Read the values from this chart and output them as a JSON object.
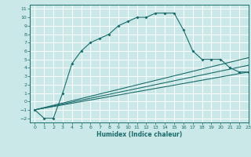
{
  "xlabel": "Humidex (Indice chaleur)",
  "bg_color": "#cbe8e8",
  "grid_color": "#ffffff",
  "line_color": "#1a6b6b",
  "xlim": [
    -0.5,
    23
  ],
  "ylim": [
    -2.5,
    11.5
  ],
  "xticks": [
    0,
    1,
    2,
    3,
    4,
    5,
    6,
    7,
    8,
    9,
    10,
    11,
    12,
    13,
    14,
    15,
    16,
    17,
    18,
    19,
    20,
    21,
    22,
    23
  ],
  "yticks": [
    -2,
    -1,
    0,
    1,
    2,
    3,
    4,
    5,
    6,
    7,
    8,
    9,
    10,
    11
  ],
  "line1_x": [
    0,
    1,
    2,
    3,
    4,
    5,
    6,
    7,
    8,
    9,
    10,
    11,
    12,
    13,
    14,
    15,
    16,
    17,
    18,
    19,
    20,
    21,
    22,
    23
  ],
  "line1_y": [
    -1,
    -2,
    -2,
    1,
    4.5,
    6,
    7,
    7.5,
    8,
    9,
    9.5,
    10,
    10,
    10.5,
    10.5,
    10.5,
    8.5,
    6,
    5,
    5,
    5,
    4,
    3.5,
    3.5
  ],
  "line2_x": [
    0,
    23
  ],
  "line2_y": [
    -1,
    3.5
  ],
  "line3_x": [
    0,
    23
  ],
  "line3_y": [
    -1,
    4.3
  ],
  "line4_x": [
    0,
    23
  ],
  "line4_y": [
    -1,
    5.2
  ]
}
